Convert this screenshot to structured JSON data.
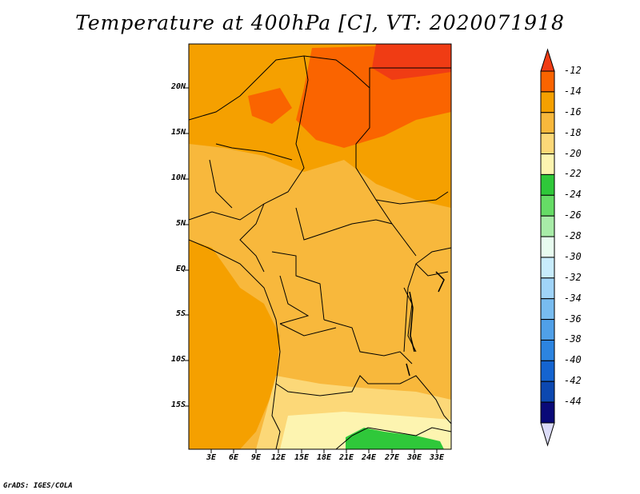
{
  "title": "Temperature at 400hPa [C], VT: 2020071918",
  "credit": "GrADS: IGES/COLA",
  "map": {
    "lat_labels": [
      "20N",
      "15N",
      "10N",
      "5N",
      "EQ",
      "5S",
      "10S",
      "15S"
    ],
    "lon_labels": [
      "3E",
      "6E",
      "9E",
      "12E",
      "15E",
      "18E",
      "21E",
      "24E",
      "27E",
      "30E",
      "33E"
    ]
  },
  "colorbar": {
    "labels": [
      "-12",
      "-14",
      "-16",
      "-18",
      "-20",
      "-22",
      "-24",
      "-26",
      "-28",
      "-30",
      "-32",
      "-34",
      "-36",
      "-38",
      "-40",
      "-42",
      "-44"
    ],
    "colors": [
      "#f03c14",
      "#fa6400",
      "#f5a000",
      "#f8b83c",
      "#fcd878",
      "#fdf4b0",
      "#2fc83a",
      "#66dc66",
      "#a8eca8",
      "#e8fcf0",
      "#c8ecfc",
      "#a0d4f8",
      "#78bcf0",
      "#50a0e8",
      "#2c84e0",
      "#1464d0",
      "#0c48b0",
      "#0a0a78",
      "#dcdcf8"
    ]
  }
}
